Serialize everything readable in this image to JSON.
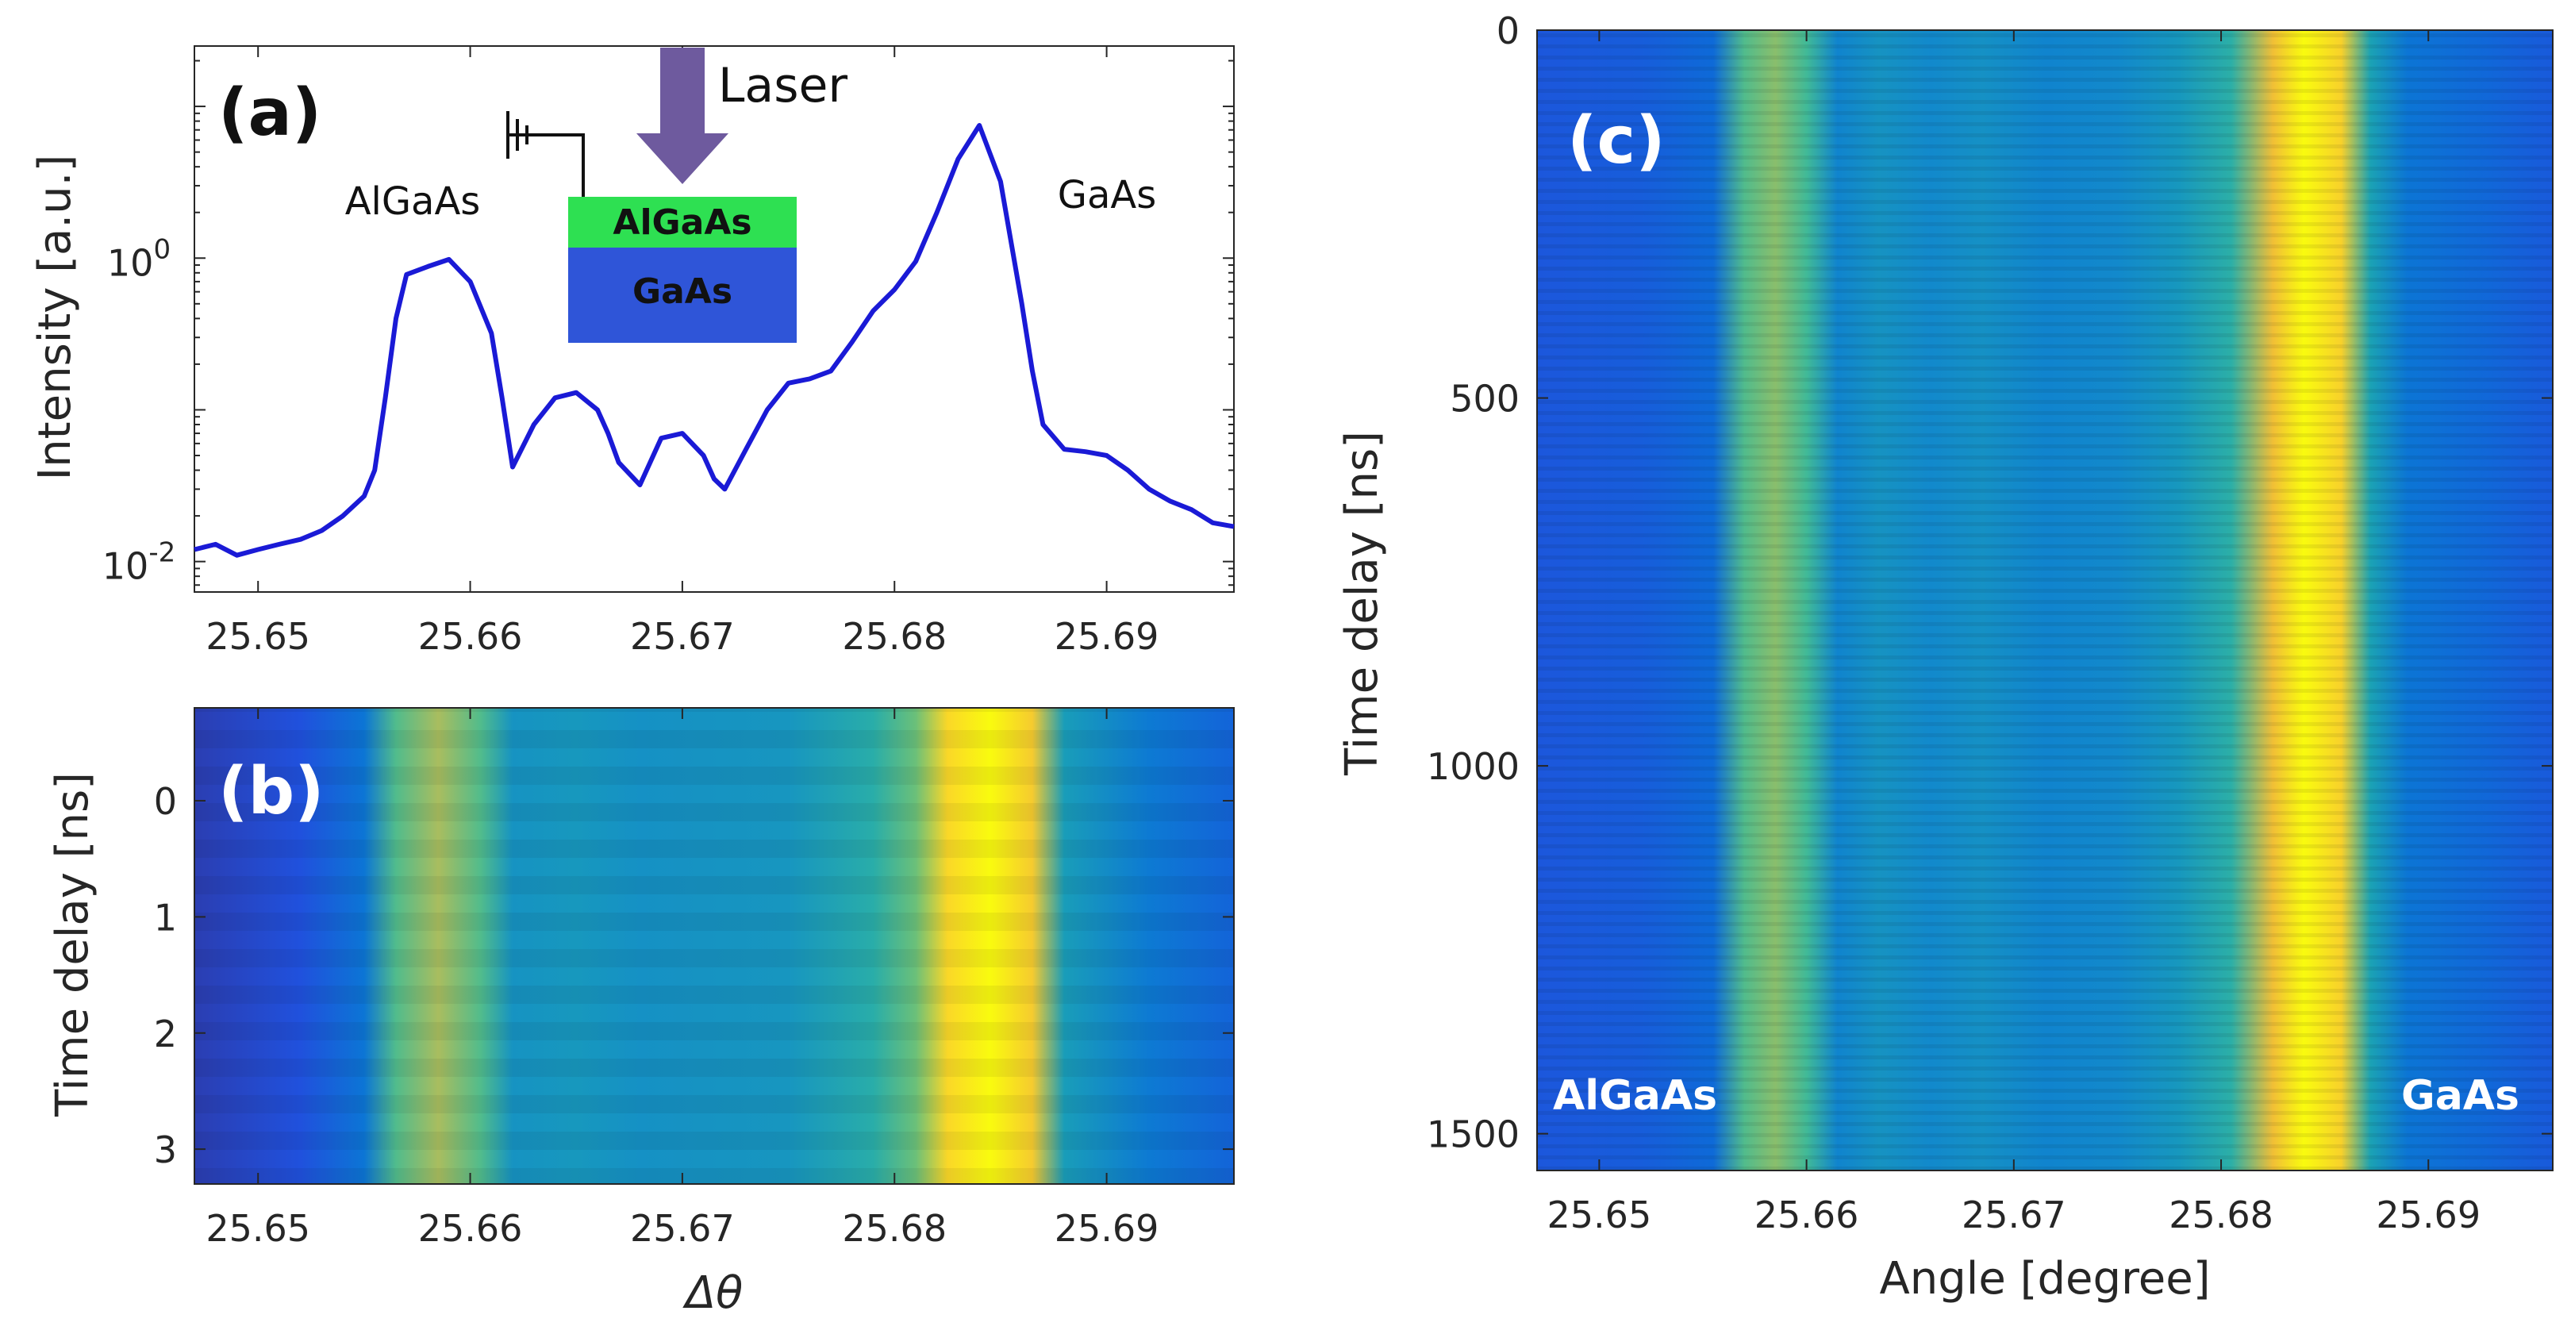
{
  "colors": {
    "curve": "#1a1ad6",
    "axis": "#262626",
    "algaas_layer": "#2ee052",
    "gaas_layer": "#2f55d8",
    "laser_arrow": "#6e5a9e"
  },
  "chart_data": [
    {
      "id": "a",
      "type": "line",
      "panel_label": "(a)",
      "ylabel": "Intensity [a.u.]",
      "xlabel": "",
      "yscale": "log",
      "xlim": [
        25.647,
        25.696
      ],
      "ylim": [
        0.0063,
        25
      ],
      "xticks": [
        25.65,
        25.66,
        25.67,
        25.68,
        25.69
      ],
      "xtick_labels": [
        "25.65",
        "25.66",
        "25.67",
        "25.68",
        "25.69"
      ],
      "yticks": [
        1,
        0.01
      ],
      "ytick_labels": [
        {
          "base": "10",
          "exp": "0"
        },
        {
          "base": "10",
          "exp": "-2"
        }
      ],
      "peak_labels": [
        "AlGaAs",
        "GaAs"
      ],
      "inset": {
        "laser_label": "Laser",
        "top_layer": "AlGaAs",
        "substrate": "GaAs"
      },
      "x": [
        25.647,
        25.648,
        25.649,
        25.65,
        25.651,
        25.652,
        25.653,
        25.654,
        25.655,
        25.6555,
        25.656,
        25.6565,
        25.657,
        25.658,
        25.659,
        25.66,
        25.661,
        25.6615,
        25.662,
        25.663,
        25.664,
        25.665,
        25.666,
        25.6665,
        25.667,
        25.668,
        25.669,
        25.67,
        25.671,
        25.6715,
        25.672,
        25.673,
        25.674,
        25.675,
        25.676,
        25.677,
        25.678,
        25.679,
        25.68,
        25.681,
        25.682,
        25.683,
        25.684,
        25.685,
        25.686,
        25.6865,
        25.687,
        25.688,
        25.689,
        25.69,
        25.691,
        25.692,
        25.693,
        25.694,
        25.695,
        25.696
      ],
      "y": [
        0.012,
        0.013,
        0.011,
        0.012,
        0.013,
        0.014,
        0.016,
        0.02,
        0.027,
        0.04,
        0.12,
        0.4,
        0.78,
        0.88,
        0.98,
        0.7,
        0.32,
        0.12,
        0.042,
        0.08,
        0.12,
        0.13,
        0.1,
        0.07,
        0.045,
        0.032,
        0.065,
        0.07,
        0.05,
        0.035,
        0.03,
        0.055,
        0.1,
        0.15,
        0.16,
        0.18,
        0.28,
        0.45,
        0.62,
        0.95,
        2.0,
        4.5,
        7.5,
        3.2,
        0.5,
        0.18,
        0.08,
        0.055,
        0.053,
        0.05,
        0.04,
        0.03,
        0.025,
        0.022,
        0.018,
        0.017
      ]
    },
    {
      "id": "b",
      "type": "heatmap",
      "panel_label": "(b)",
      "ylabel": "Time delay [ns]",
      "xlabel": "Δθ",
      "xlim": [
        25.647,
        25.696
      ],
      "ylim": [
        -0.8,
        3.3
      ],
      "xticks": [
        25.65,
        25.66,
        25.67,
        25.68,
        25.69
      ],
      "xtick_labels": [
        "25.65",
        "25.66",
        "25.67",
        "25.68",
        "25.69"
      ],
      "yticks": [
        0,
        1,
        2,
        3
      ],
      "ytick_labels": [
        "0",
        "1",
        "2",
        "3"
      ],
      "colormap": "parula",
      "intensity_profile": {
        "x": [
          25.647,
          25.652,
          25.655,
          25.6565,
          25.6585,
          25.6605,
          25.662,
          25.665,
          25.668,
          25.671,
          25.675,
          25.679,
          25.681,
          25.6825,
          25.6845,
          25.6865,
          25.688,
          25.692,
          25.696
        ],
        "level": [
          0.05,
          0.1,
          0.22,
          0.55,
          0.68,
          0.55,
          0.34,
          0.36,
          0.33,
          0.34,
          0.35,
          0.45,
          0.6,
          0.9,
          1.0,
          0.86,
          0.38,
          0.24,
          0.16
        ]
      }
    },
    {
      "id": "c",
      "type": "heatmap",
      "panel_label": "(c)",
      "ylabel": "Time delay [ns]",
      "xlabel": "Angle [degree]",
      "xlim": [
        25.647,
        25.696
      ],
      "ylim": [
        0,
        1550
      ],
      "xticks": [
        25.65,
        25.66,
        25.67,
        25.68,
        25.69
      ],
      "xtick_labels": [
        "25.65",
        "25.66",
        "25.67",
        "25.68",
        "25.69"
      ],
      "yticks": [
        0,
        500,
        1000,
        1500
      ],
      "ytick_labels": [
        "0",
        "500",
        "1000",
        "1500"
      ],
      "peak_labels": [
        "AlGaAs",
        "GaAs"
      ],
      "colormap": "parula",
      "intensity_profile": {
        "x": [
          25.647,
          25.652,
          25.6555,
          25.657,
          25.6585,
          25.66,
          25.6615,
          25.6635,
          25.666,
          25.6685,
          25.6715,
          25.675,
          25.678,
          25.6805,
          25.6825,
          25.684,
          25.6858,
          25.6872,
          25.689,
          25.693,
          25.696
        ],
        "level": [
          0.12,
          0.14,
          0.18,
          0.55,
          0.64,
          0.52,
          0.28,
          0.34,
          0.3,
          0.33,
          0.28,
          0.3,
          0.36,
          0.46,
          0.82,
          1.0,
          0.88,
          0.4,
          0.22,
          0.17,
          0.13
        ]
      }
    }
  ]
}
